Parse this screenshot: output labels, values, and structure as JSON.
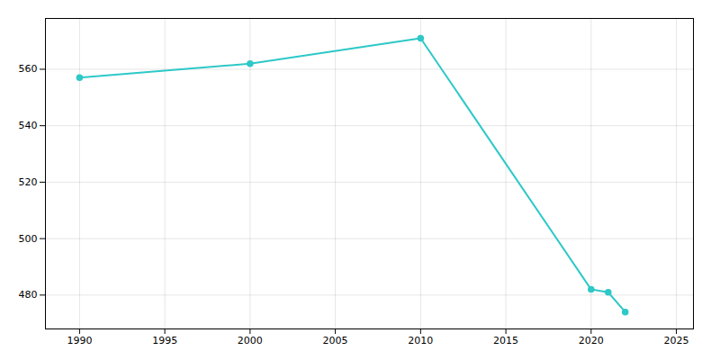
{
  "chart_data": {
    "type": "line",
    "x": [
      1990,
      2000,
      2010,
      2020,
      2021,
      2022
    ],
    "values": [
      557,
      562,
      571,
      482,
      481,
      474
    ],
    "color": "#2ec8c8",
    "marker": "circle",
    "xlim": [
      1988,
      2026
    ],
    "xticks": [
      1990,
      1995,
      2000,
      2005,
      2010,
      2015,
      2020,
      2025
    ],
    "ylim": [
      468,
      578
    ],
    "yticks": [
      480,
      500,
      520,
      540,
      560
    ],
    "grid": true
  }
}
